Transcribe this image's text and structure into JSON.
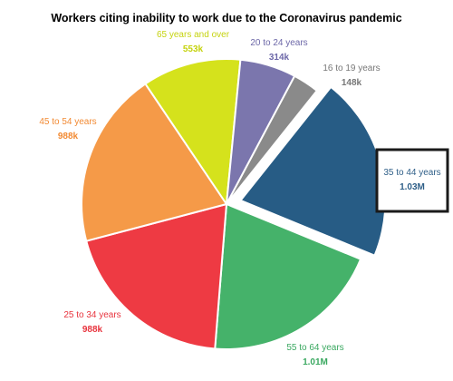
{
  "chart_data": {
    "type": "pie",
    "title": "Workers citing inability to work due to the Coronavirus pandemic",
    "slices": [
      {
        "label": "16 to 19 years",
        "value_label": "148k",
        "value": 148000,
        "color": "#8a8a8a",
        "text_color": "#777777"
      },
      {
        "label": "35 to 44 years",
        "value_label": "1.03M",
        "value": 1030000,
        "color": "#275c85",
        "text_color": "#2f5f88",
        "exploded": true,
        "highlighted": true
      },
      {
        "label": "55 to 64 years",
        "value_label": "1.01M",
        "value": 1010000,
        "color": "#45b26a",
        "text_color": "#3aa860"
      },
      {
        "label": "25 to 34 years",
        "value_label": "988k",
        "value": 988000,
        "color": "#ee3a43",
        "text_color": "#e8343e"
      },
      {
        "label": "45 to 54 years",
        "value_label": "988k",
        "value": 988000,
        "color": "#f59a48",
        "text_color": "#f28a33"
      },
      {
        "label": "65 years and over",
        "value_label": "553k",
        "value": 553000,
        "color": "#d5e21c",
        "text_color": "#c5d30e"
      },
      {
        "label": "20 to 24 years",
        "value_label": "314k",
        "value": 314000,
        "color": "#7b76ad",
        "text_color": "#6d68a8"
      }
    ]
  }
}
